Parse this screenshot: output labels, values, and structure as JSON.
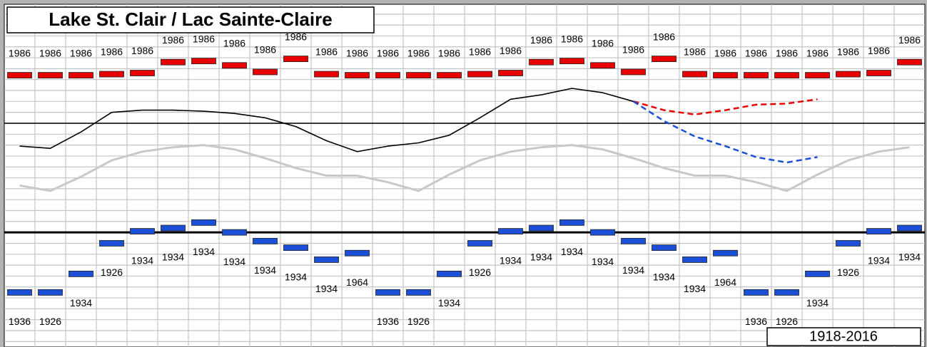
{
  "chart_data": {
    "type": "range_markers",
    "title": "Lake St. Clair / Lac Sainte-Claire",
    "period": "1918-2016",
    "categories": [
      null,
      null,
      null,
      null,
      null,
      null,
      null,
      null,
      null,
      null,
      null,
      null,
      null,
      null,
      null,
      null,
      null,
      null,
      null,
      null,
      null,
      null,
      null,
      null,
      null,
      null,
      null,
      null,
      null,
      null
    ],
    "ylim": [
      172.95,
      176.09
    ],
    "yticks": [
      173.0,
      173.1,
      173.2,
      173.3,
      173.4,
      173.5,
      173.6,
      173.7,
      173.8,
      173.9,
      174.0,
      174.1,
      174.2,
      174.3,
      174.4,
      174.5,
      174.6,
      174.7,
      174.8,
      174.9,
      175.0,
      175.1,
      175.2,
      175.3,
      175.4,
      175.5,
      175.6,
      175.7,
      175.8,
      175.9,
      176.0
    ],
    "major_yticks": [
      174.0,
      175.0
    ],
    "grid": true,
    "series": [
      {
        "kind": "marker",
        "label_side": "above",
        "color": "#e80000",
        "values": [
          175.44,
          175.44,
          175.44,
          175.45,
          175.46,
          175.56,
          175.57,
          175.53,
          175.47,
          175.59,
          175.45,
          175.44,
          175.44,
          175.44,
          175.44,
          175.45,
          175.46,
          175.56,
          175.57,
          175.53,
          175.47,
          175.59,
          175.45,
          175.44,
          175.44,
          175.44,
          175.44,
          175.45,
          175.46,
          175.56
        ],
        "labels": [
          "1986",
          "1986",
          "1986",
          "1986",
          "1986",
          "1986",
          "1986",
          "1986",
          "1986",
          "1986",
          "1986",
          "1986",
          "1986",
          "1986",
          "1986",
          "1986",
          "1986",
          "1986",
          "1986",
          "1986",
          "1986",
          "1986",
          "1986",
          "1986",
          "1986",
          "1986",
          "1986",
          "1986",
          "1986",
          "1986"
        ]
      },
      {
        "kind": "marker",
        "label_side": "below",
        "color": "#1c4fd8",
        "values": [
          173.45,
          173.45,
          173.62,
          173.9,
          174.01,
          174.04,
          174.09,
          174.0,
          173.92,
          173.86,
          173.75,
          173.81,
          173.45,
          173.45,
          173.62,
          173.9,
          174.01,
          174.04,
          174.09,
          174.0,
          173.92,
          173.86,
          173.75,
          173.81,
          173.45,
          173.45,
          173.62,
          173.9,
          174.01,
          174.04
        ],
        "labels": [
          "1936",
          "1926",
          "1934",
          "1926",
          "1934",
          "1934",
          "1934",
          "1934",
          "1934",
          "1934",
          "1934",
          "1964",
          "1936",
          "1926",
          "1934",
          "1926",
          "1934",
          "1934",
          "1934",
          "1934",
          "1934",
          "1934",
          "1934",
          "1964",
          "1936",
          "1926",
          "1934",
          "1926",
          "1934",
          "1934"
        ]
      },
      {
        "kind": "line",
        "dashed": false,
        "width": 3,
        "color": "#c8c8c8",
        "values": [
          174.43,
          174.38,
          174.51,
          174.66,
          174.74,
          174.78,
          174.8,
          174.76,
          174.68,
          174.59,
          174.52,
          174.52,
          174.46,
          174.38,
          174.53,
          174.66,
          174.74,
          174.78,
          174.8,
          174.76,
          174.68,
          174.59,
          174.52,
          174.52,
          174.46,
          174.38,
          174.53,
          174.66,
          174.74,
          174.78
        ]
      },
      {
        "kind": "line",
        "dashed": false,
        "width": 1.6,
        "color": "#000000",
        "values": [
          174.79,
          174.77,
          174.92,
          175.1,
          175.12,
          175.12,
          175.11,
          175.09,
          175.05,
          174.97,
          174.84,
          174.74,
          174.79,
          174.82,
          174.89,
          175.05,
          175.22,
          175.26,
          175.32,
          175.28,
          175.2,
          null,
          null,
          null,
          null,
          null,
          null,
          null,
          null,
          null
        ]
      },
      {
        "kind": "line",
        "dashed": true,
        "width": 2.5,
        "color": "#e80000",
        "values": [
          null,
          null,
          null,
          null,
          null,
          null,
          null,
          null,
          null,
          null,
          null,
          null,
          null,
          null,
          null,
          null,
          null,
          null,
          null,
          null,
          175.2,
          175.12,
          175.08,
          175.12,
          175.17,
          175.18,
          175.22,
          null,
          null,
          null
        ]
      },
      {
        "kind": "line",
        "dashed": true,
        "width": 2.5,
        "color": "#1c4fd8",
        "values": [
          null,
          null,
          null,
          null,
          null,
          null,
          null,
          null,
          null,
          null,
          null,
          null,
          null,
          null,
          null,
          null,
          null,
          null,
          null,
          null,
          175.2,
          175.02,
          174.88,
          174.79,
          174.69,
          174.64,
          174.69,
          null,
          null,
          null
        ]
      }
    ]
  }
}
